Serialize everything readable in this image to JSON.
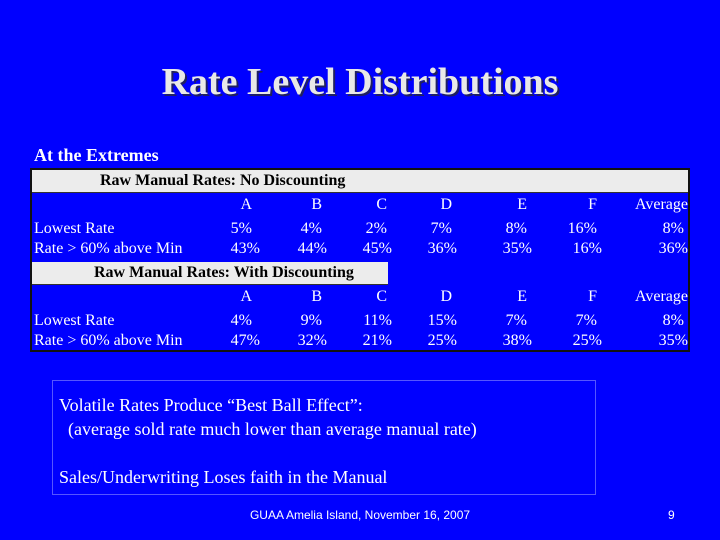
{
  "slide": {
    "title": "Rate Level Distributions",
    "subtitle": "At the Extremes"
  },
  "table": {
    "sections": [
      {
        "header": "Raw Manual Rates: No Discounting",
        "columns": [
          "A",
          "B",
          "C",
          "D",
          "E",
          "F",
          "Average"
        ],
        "rows": [
          {
            "label": "Lowest Rate",
            "values": [
              "5%",
              "4%",
              "2%",
              "7%",
              "8%",
              "16%",
              "8%"
            ]
          },
          {
            "label": "Rate > 60% above Min",
            "values": [
              "43%",
              "44%",
              "45%",
              "36%",
              "35%",
              "16%",
              "36%"
            ]
          }
        ]
      },
      {
        "header": "Raw Manual Rates: With Discounting",
        "columns": [
          "A",
          "B",
          "C",
          "D",
          "E",
          "F",
          "Average"
        ],
        "rows": [
          {
            "label": "Lowest Rate",
            "values": [
              "4%",
              "9%",
              "11%",
              "15%",
              "7%",
              "7%",
              "8%"
            ]
          },
          {
            "label": "Rate > 60% above Min",
            "values": [
              "47%",
              "32%",
              "21%",
              "25%",
              "38%",
              "25%",
              "35%"
            ]
          }
        ]
      }
    ]
  },
  "callout": {
    "line1": "Volatile Rates Produce “Best Ball Effect”:",
    "line2": "  (average sold rate much lower than average manual rate)",
    "line3": "Sales/Underwriting Loses faith in the Manual"
  },
  "footer": {
    "text": "GUAA Amelia Island, November 16, 2007",
    "page_number": "9"
  }
}
